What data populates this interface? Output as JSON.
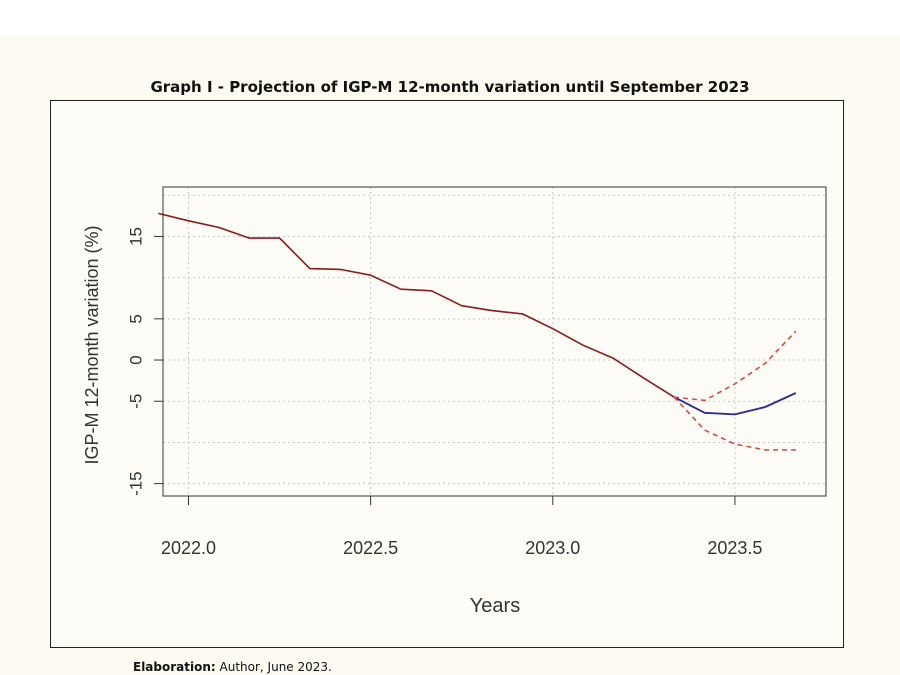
{
  "chart_title": "Graph I - Projection of IGP-M 12-month variation until September 2023",
  "footer": {
    "label": "Elaboration:",
    "text": " Author, June 2023."
  },
  "colors": {
    "page_background": "#fdfaf1",
    "plot_background": "#fdfcf6",
    "grid": "#c8c8c8",
    "observed": "#8b1a1a",
    "forecast": "#2a2a9a",
    "interval": "#e0403a"
  },
  "chart_data": {
    "type": "line",
    "title": "Graph I - Projection of IGP-M 12-month variation until September 2023",
    "xlabel": "Years",
    "ylabel": "IGP-M 12-month variation (%)",
    "xlim": [
      2021.93,
      2023.75
    ],
    "ylim": [
      -16.5,
      21
    ],
    "x_ticks": [
      2022.0,
      2022.5,
      2023.0,
      2023.5
    ],
    "x_tick_labels": [
      "2022.0",
      "2022.5",
      "2023.0",
      "2023.5"
    ],
    "y_ticks": [
      -15,
      -5,
      0,
      5,
      15
    ],
    "y_tick_labels": [
      "-15",
      "-5",
      "0",
      "5",
      "15"
    ],
    "y_grid": [
      -15,
      -10,
      -5,
      0,
      5,
      10,
      15,
      20
    ],
    "grid": true,
    "series": [
      {
        "style": "observed",
        "x": [
          2021.917,
          2022.0,
          2022.083,
          2022.167,
          2022.25,
          2022.333,
          2022.417,
          2022.5,
          2022.583,
          2022.667,
          2022.75,
          2022.833,
          2022.917,
          2023.0,
          2023.083,
          2023.167,
          2023.25,
          2023.333
        ],
        "values": [
          17.8,
          16.9,
          16.1,
          14.8,
          14.8,
          11.1,
          11.0,
          10.3,
          8.6,
          8.4,
          6.6,
          6.0,
          5.6,
          3.8,
          1.8,
          0.2,
          -2.2,
          -4.5
        ]
      },
      {
        "style": "forecast",
        "x": [
          2023.333,
          2023.417,
          2023.5,
          2023.583,
          2023.667
        ],
        "values": [
          -4.5,
          -6.4,
          -6.6,
          -5.7,
          -4.0
        ]
      },
      {
        "style": "interval",
        "x": [
          2023.333,
          2023.417,
          2023.5,
          2023.583,
          2023.667
        ],
        "values": [
          -4.5,
          -4.9,
          -2.9,
          -0.4,
          3.5
        ]
      },
      {
        "style": "interval",
        "x": [
          2023.333,
          2023.417,
          2023.5,
          2023.583,
          2023.667
        ],
        "values": [
          -4.5,
          -8.5,
          -10.2,
          -10.9,
          -10.9
        ]
      }
    ]
  }
}
